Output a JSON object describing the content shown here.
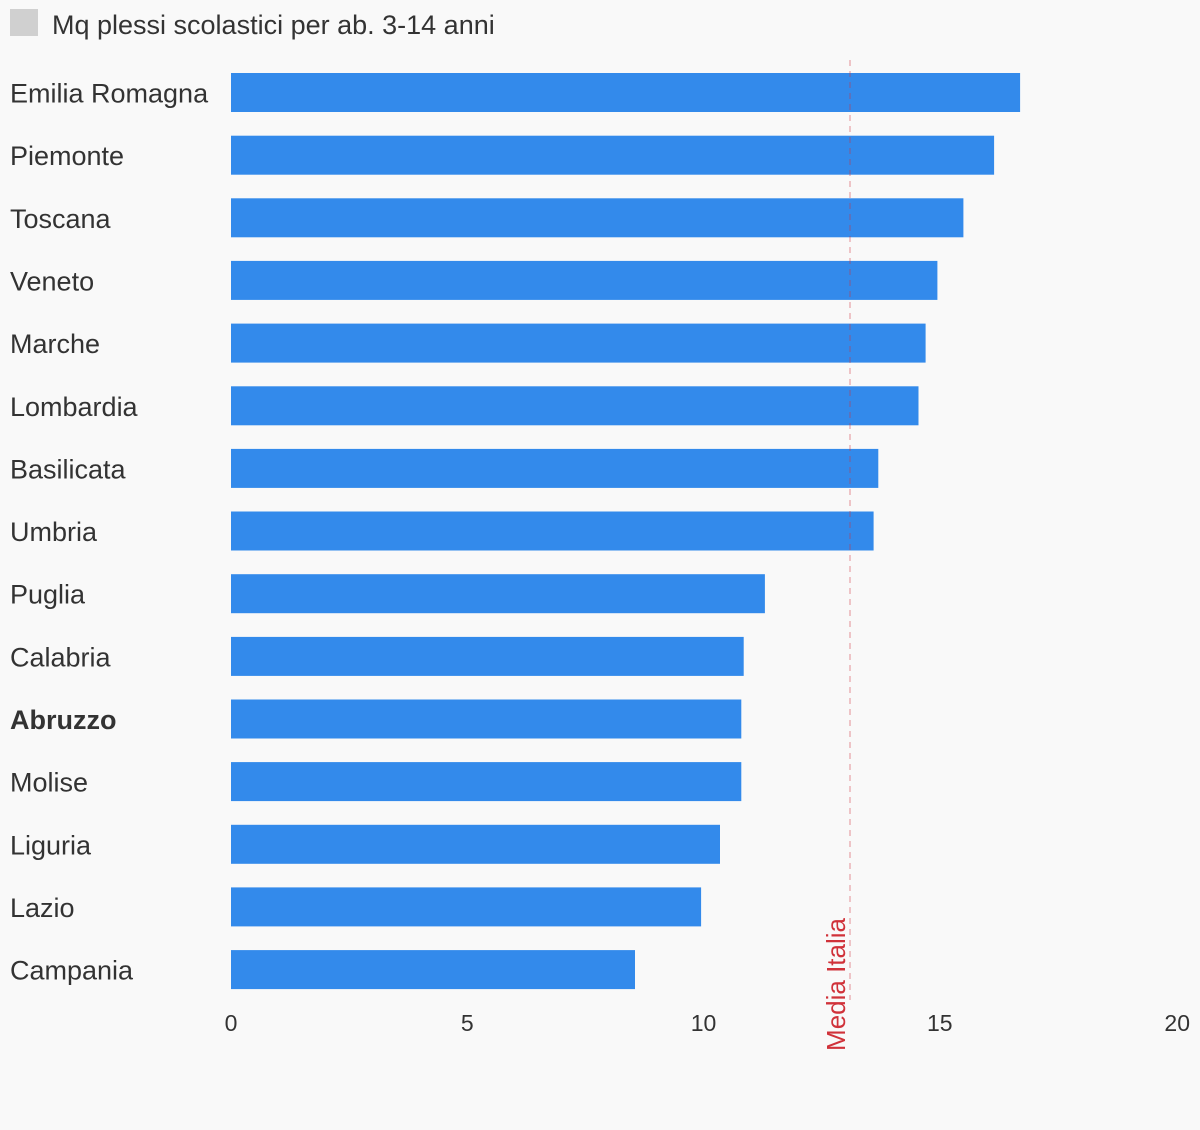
{
  "legend": {
    "label": "Mq plessi scolastici per ab. 3-14 anni",
    "swatch_color": "#d0d0d0"
  },
  "chart_data": {
    "type": "bar",
    "orientation": "horizontal",
    "categories": [
      "Emilia Romagna",
      "Piemonte",
      "Toscana",
      "Veneto",
      "Marche",
      "Lombardia",
      "Basilicata",
      "Umbria",
      "Puglia",
      "Calabria",
      "Abruzzo",
      "Molise",
      "Liguria",
      "Lazio",
      "Campania"
    ],
    "highlighted_category": "Abruzzo",
    "series": [
      {
        "values": [
          16.7,
          16.15,
          15.5,
          14.95,
          14.7,
          14.55,
          13.7,
          13.6,
          11.3,
          10.85,
          10.8,
          10.8,
          10.35,
          9.95,
          8.55
        ],
        "color": "#338aeb"
      }
    ],
    "x_ticks": [
      0,
      5,
      10,
      15,
      20
    ],
    "xlim": [
      0,
      20
    ],
    "reference_line": {
      "label": "Media Italia",
      "value": 13.1,
      "color": "#d0323a"
    },
    "grid": false,
    "legend_position": "top-left"
  }
}
